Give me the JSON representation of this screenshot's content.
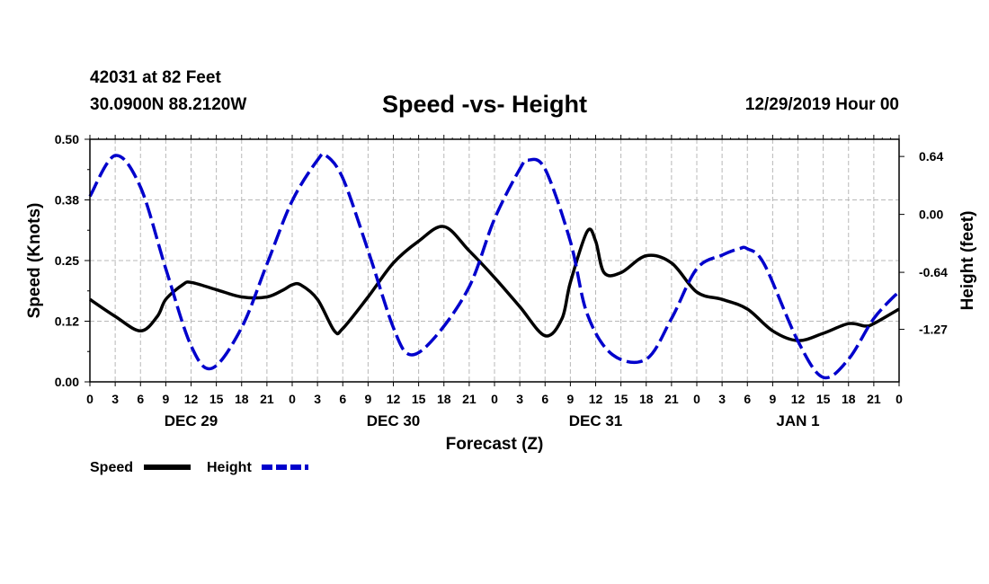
{
  "header": {
    "station": "42031 at 82 Feet",
    "coords": "30.0900N 88.2120W",
    "title": "Speed -vs- Height",
    "timestamp": "12/29/2019 Hour 00"
  },
  "chart_data": {
    "type": "line",
    "title": "Speed -vs- Height",
    "xlabel": "Forecast (Z)",
    "ylabel": "Speed (Knots)",
    "y2label": "Height (feet)",
    "x_range_hours": [
      0,
      96
    ],
    "ylim": [
      0,
      0.5
    ],
    "y2lim": [
      -1.85,
      0.83
    ],
    "y_ticks": [
      "0.00",
      "0.12",
      "0.25",
      "0.38",
      "0.50"
    ],
    "y_tick_values": [
      0,
      0.125,
      0.25,
      0.375,
      0.5
    ],
    "y2_ticks": [
      "0.64",
      "0.00",
      "-0.64",
      "-1.27"
    ],
    "y2_tick_values": [
      0.64,
      0,
      -0.64,
      -1.27
    ],
    "x_tick_hours": [
      0,
      3,
      6,
      9,
      12,
      15,
      18,
      21,
      24,
      27,
      30,
      33,
      36,
      39,
      42,
      45,
      48,
      51,
      54,
      57,
      60,
      63,
      66,
      69,
      72,
      75,
      78,
      81,
      84,
      87,
      90,
      93,
      96
    ],
    "x_tick_labels": [
      "0",
      "3",
      "6",
      "9",
      "12",
      "15",
      "18",
      "21",
      "0",
      "3",
      "6",
      "9",
      "12",
      "15",
      "18",
      "21",
      "0",
      "3",
      "6",
      "9",
      "12",
      "15",
      "18",
      "21",
      "0",
      "3",
      "6",
      "9",
      "12",
      "15",
      "18",
      "21",
      "0"
    ],
    "day_labels": [
      {
        "hour": 12,
        "label": "DEC 29"
      },
      {
        "hour": 36,
        "label": "DEC 30"
      },
      {
        "hour": 60,
        "label": "DEC 31"
      },
      {
        "hour": 84,
        "label": "JAN 1"
      }
    ],
    "grid": true,
    "legend": "bottom-left",
    "series": [
      {
        "name": "Speed",
        "axis": "left",
        "color": "#000000",
        "style": "solid",
        "x": [
          0,
          3,
          6,
          8,
          9,
          11,
          12,
          15,
          18,
          21,
          23,
          24,
          25,
          27,
          29,
          30,
          33,
          36,
          39,
          42,
          45,
          48,
          51,
          54,
          56,
          57,
          59,
          60,
          61,
          63,
          66,
          69,
          72,
          75,
          78,
          81,
          84,
          87,
          90,
          92,
          93,
          96
        ],
        "values": [
          0.17,
          0.135,
          0.105,
          0.135,
          0.17,
          0.2,
          0.205,
          0.19,
          0.175,
          0.175,
          0.19,
          0.2,
          0.2,
          0.17,
          0.105,
          0.11,
          0.175,
          0.245,
          0.29,
          0.32,
          0.27,
          0.215,
          0.155,
          0.095,
          0.13,
          0.205,
          0.31,
          0.29,
          0.225,
          0.225,
          0.26,
          0.245,
          0.185,
          0.17,
          0.15,
          0.105,
          0.085,
          0.1,
          0.12,
          0.115,
          0.12,
          0.15
        ]
      },
      {
        "name": "Height",
        "axis": "right",
        "color": "#0000cc",
        "style": "dashed",
        "x": [
          0,
          3,
          6,
          9,
          12,
          14.5,
          18,
          21,
          24,
          27,
          28,
          30,
          33,
          36,
          38,
          41,
          45,
          48,
          51,
          52,
          54,
          57,
          59,
          62,
          66,
          69,
          72,
          75,
          77,
          78,
          80,
          84,
          87,
          90,
          93,
          96
        ],
        "values": [
          0.2,
          0.65,
          0.3,
          -0.6,
          -1.45,
          -1.7,
          -1.25,
          -0.55,
          0.15,
          0.6,
          0.65,
          0.4,
          -0.4,
          -1.25,
          -1.55,
          -1.35,
          -0.8,
          -0.05,
          0.5,
          0.6,
          0.5,
          -0.3,
          -1.1,
          -1.55,
          -1.6,
          -1.15,
          -0.6,
          -0.45,
          -0.38,
          -0.38,
          -0.55,
          -1.4,
          -1.8,
          -1.6,
          -1.15,
          -0.85
        ]
      }
    ]
  },
  "legend": {
    "speed_label": "Speed",
    "height_label": "Height"
  }
}
